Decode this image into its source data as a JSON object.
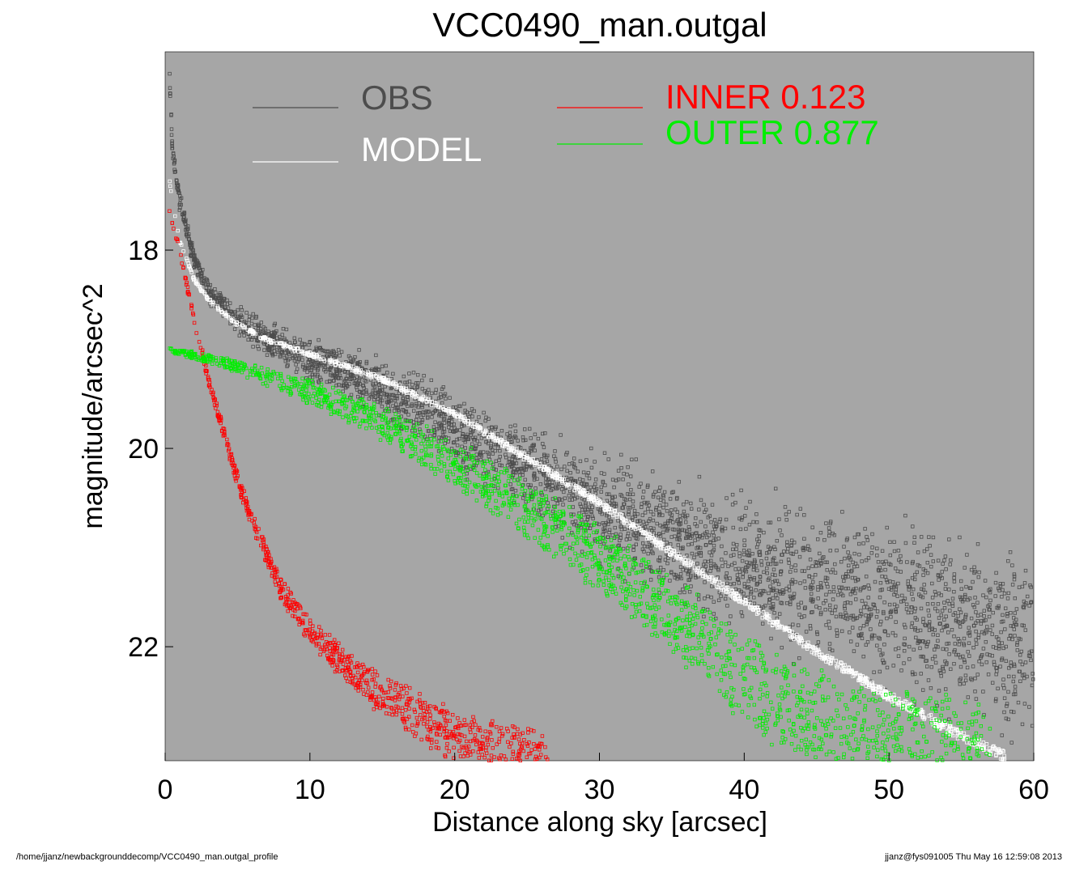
{
  "chart_data": {
    "type": "scatter",
    "title": "VCC0490_man.outgal",
    "xlabel": "Distance along sky [arcsec]",
    "ylabel": "magnitude/arcsec^2",
    "xlim": [
      0,
      60
    ],
    "ylim": [
      23.15,
      16.0
    ],
    "y_inverted": true,
    "x_ticks": [
      "0",
      "10",
      "20",
      "30",
      "40",
      "50",
      "60"
    ],
    "y_ticks": [
      "18",
      "20",
      "22"
    ],
    "background": "#a6a6a6",
    "legend": [
      {
        "label": "OBS",
        "color": "#4d4d4d",
        "placement": "top-left"
      },
      {
        "label": "MODEL",
        "color": "#ffffff",
        "placement": "top-left"
      },
      {
        "label": "INNER  0.123",
        "color": "#ff0000",
        "placement": "top-center"
      },
      {
        "label": "OUTER  0.877",
        "color": "#00ee00",
        "placement": "top-center"
      }
    ],
    "series": [
      {
        "name": "OBS",
        "color": "#4d4d4d",
        "marker": "open-square",
        "x": [
          0.3,
          0.5,
          1,
          2,
          3,
          5,
          7,
          10,
          12,
          15,
          18,
          20,
          25,
          30,
          35,
          40,
          45,
          50,
          55,
          60
        ],
        "y": [
          16.2,
          17.0,
          17.5,
          18.1,
          18.4,
          18.7,
          18.9,
          19.1,
          19.2,
          19.4,
          19.6,
          19.8,
          20.2,
          20.6,
          20.9,
          21.2,
          21.4,
          21.6,
          21.8,
          22.0
        ]
      },
      {
        "name": "MODEL",
        "color": "#ffffff",
        "marker": "open-square",
        "x": [
          0.3,
          0.5,
          1,
          2,
          3,
          5,
          7,
          10,
          15,
          20,
          25,
          30,
          35,
          40,
          45,
          50,
          55,
          58
        ],
        "y": [
          17.3,
          17.5,
          17.9,
          18.3,
          18.5,
          18.75,
          18.9,
          19.05,
          19.3,
          19.65,
          20.1,
          20.55,
          21.05,
          21.55,
          22.05,
          22.5,
          22.9,
          23.1
        ]
      },
      {
        "name": "INNER  0.123",
        "color": "#ff0000",
        "marker": "open-square",
        "x": [
          0.3,
          1,
          2,
          3,
          4,
          5,
          6,
          8,
          10,
          12,
          15,
          18,
          20,
          22,
          24,
          26.5
        ],
        "y": [
          17.6,
          18.0,
          18.7,
          19.3,
          19.8,
          20.3,
          20.7,
          21.4,
          21.8,
          22.1,
          22.45,
          22.7,
          22.85,
          22.95,
          23.05,
          23.1
        ]
      },
      {
        "name": "OUTER  0.877",
        "color": "#00ee00",
        "marker": "open-square",
        "x": [
          0.3,
          5,
          10,
          15,
          20,
          25,
          30,
          35,
          40,
          42,
          45,
          50,
          55,
          57
        ],
        "y": [
          19.0,
          19.15,
          19.4,
          19.7,
          20.1,
          20.55,
          21.05,
          21.6,
          22.2,
          22.45,
          22.6,
          22.85,
          23.0,
          23.1
        ]
      }
    ]
  },
  "footer": {
    "left": "/home/jjanz/newbackgrounddecomp/VCC0490_man.outgal_profile",
    "right": "jjanz@fys091005  Thu May 16 12:59:08 2013"
  }
}
